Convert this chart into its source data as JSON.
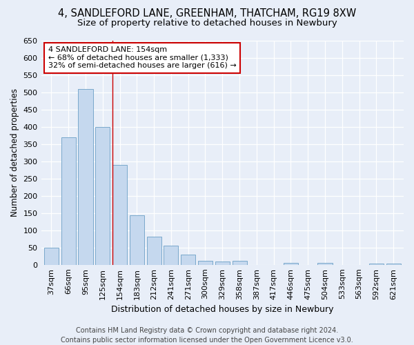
{
  "title": "4, SANDLEFORD LANE, GREENHAM, THATCHAM, RG19 8XW",
  "subtitle": "Size of property relative to detached houses in Newbury",
  "xlabel": "Distribution of detached houses by size in Newbury",
  "ylabel": "Number of detached properties",
  "categories": [
    "37sqm",
    "66sqm",
    "95sqm",
    "125sqm",
    "154sqm",
    "183sqm",
    "212sqm",
    "241sqm",
    "271sqm",
    "300sqm",
    "329sqm",
    "358sqm",
    "387sqm",
    "417sqm",
    "446sqm",
    "475sqm",
    "504sqm",
    "533sqm",
    "563sqm",
    "592sqm",
    "621sqm"
  ],
  "values": [
    50,
    370,
    510,
    400,
    290,
    143,
    82,
    55,
    30,
    12,
    9,
    12,
    0,
    0,
    5,
    0,
    5,
    0,
    0,
    3,
    3
  ],
  "bar_color": "#c5d8ee",
  "bar_edge_color": "#6a9ec5",
  "highlight_index": 4,
  "highlight_line_color": "#cc0000",
  "ylim": [
    0,
    650
  ],
  "yticks": [
    0,
    50,
    100,
    150,
    200,
    250,
    300,
    350,
    400,
    450,
    500,
    550,
    600,
    650
  ],
  "annotation_text": "4 SANDLEFORD LANE: 154sqm\n← 68% of detached houses are smaller (1,333)\n32% of semi-detached houses are larger (616) →",
  "annotation_box_facecolor": "#ffffff",
  "annotation_box_edgecolor": "#cc0000",
  "footer_line1": "Contains HM Land Registry data © Crown copyright and database right 2024.",
  "footer_line2": "Contains public sector information licensed under the Open Government Licence v3.0.",
  "bg_color": "#e8eef8",
  "plot_bg_color": "#e8eef8",
  "grid_color": "#ffffff",
  "title_fontsize": 10.5,
  "subtitle_fontsize": 9.5,
  "xlabel_fontsize": 9,
  "ylabel_fontsize": 8.5,
  "tick_fontsize": 8,
  "annotation_fontsize": 8,
  "footer_fontsize": 7
}
